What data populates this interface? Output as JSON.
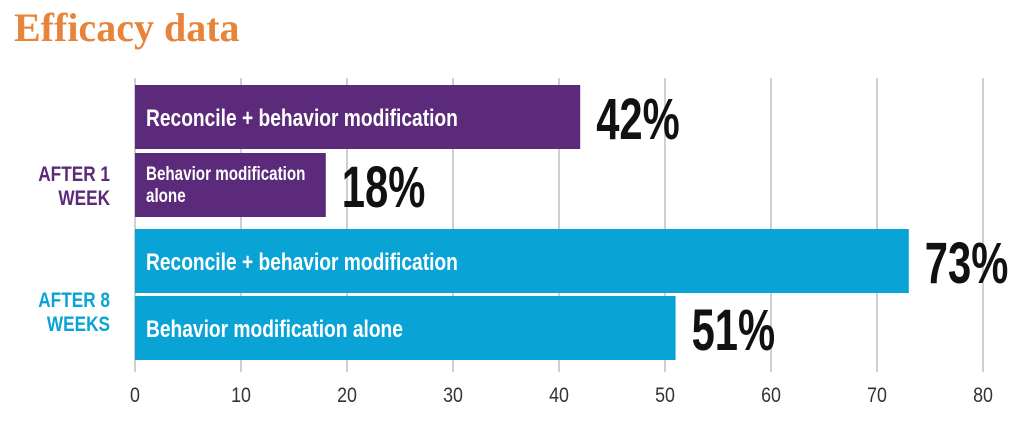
{
  "title": "Efficacy data",
  "colors": {
    "title": "#e8833a",
    "week1": "#5b2a7a",
    "week8": "#0aa3d6",
    "grid": "#cfcfcf",
    "axis_text": "#333333",
    "value_text": "#111111",
    "bar_text": "#ffffff"
  },
  "chart_data": {
    "type": "bar",
    "orientation": "horizontal",
    "title": "Efficacy data",
    "xlabel": "",
    "ylabel": "",
    "xlim": [
      0,
      80
    ],
    "xticks": [
      "0",
      "10",
      "20",
      "30",
      "40",
      "50",
      "60",
      "70",
      "80"
    ],
    "grid": true,
    "groups": [
      {
        "label": "AFTER 1 WEEK",
        "label_lines": [
          "AFTER 1",
          "WEEK"
        ],
        "color_key": "week1",
        "bars": [
          {
            "label": "Reconcile + behavior modification",
            "label_lines": [
              "Reconcile + behavior modification"
            ],
            "value": 42,
            "value_label": "42%"
          },
          {
            "label": "Behavior modification alone",
            "label_lines": [
              "Behavior modification",
              "alone"
            ],
            "value": 18,
            "value_label": "18%"
          }
        ]
      },
      {
        "label": "AFTER 8 WEEKS",
        "label_lines": [
          "AFTER 8",
          "WEEKS"
        ],
        "color_key": "week8",
        "bars": [
          {
            "label": "Reconcile + behavior modification",
            "label_lines": [
              "Reconcile + behavior modification"
            ],
            "value": 73,
            "value_label": "73%"
          },
          {
            "label": "Behavior modification alone",
            "label_lines": [
              "Behavior modification alone"
            ],
            "value": 51,
            "value_label": "51%"
          }
        ]
      }
    ]
  }
}
